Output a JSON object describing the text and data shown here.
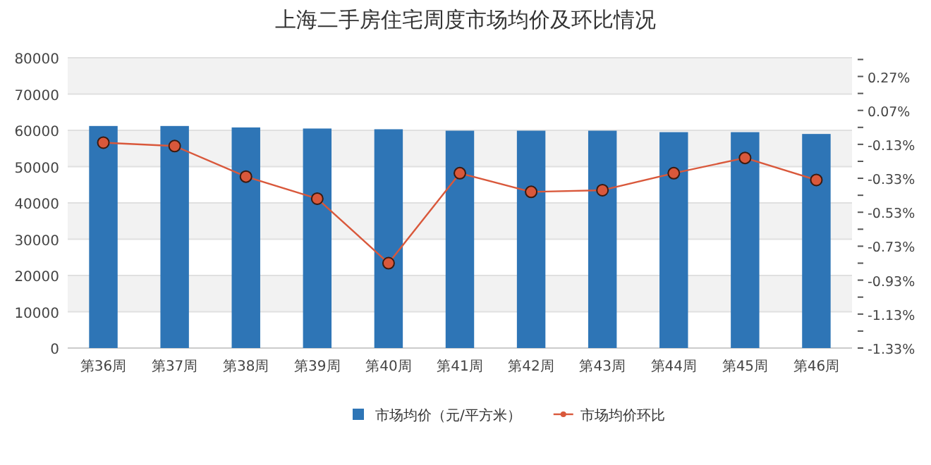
{
  "chart_data": {
    "type": "bar",
    "title": "上海二手房住宅周度市场均价及环比情况",
    "categories": [
      "第36周",
      "第37周",
      "第38周",
      "第39周",
      "第40周",
      "第41周",
      "第42周",
      "第43周",
      "第44周",
      "第45周",
      "第46周"
    ],
    "series": [
      {
        "name": "市场均价（元/平方米）",
        "color": "#2e75b6",
        "values": [
          61200,
          61200,
          60800,
          60500,
          60300,
          59900,
          59900,
          59900,
          59500,
          59500,
          59000
        ]
      },
      {
        "name": "市场均价环比",
        "type": "line",
        "axis": "y2",
        "color": "#d9583b",
        "marker": "circle",
        "values": [
          -0.12,
          -0.14,
          -0.32,
          -0.45,
          -0.83,
          -0.3,
          -0.41,
          -0.4,
          -0.3,
          -0.21,
          -0.34
        ]
      }
    ],
    "ylim": [
      0,
      80000
    ],
    "yticks": [
      0,
      10000,
      20000,
      30000,
      40000,
      50000,
      60000,
      70000,
      80000
    ],
    "y2lim": [
      -1.33,
      0.38
    ],
    "y2ticks": [
      {
        "value": -1.33,
        "label": "-1.33%"
      },
      {
        "value": -1.23,
        "label": null
      },
      {
        "value": -1.13,
        "label": "-1.13%"
      },
      {
        "value": -1.03,
        "label": null
      },
      {
        "value": -0.93,
        "label": "-0.93%"
      },
      {
        "value": -0.83,
        "label": null
      },
      {
        "value": -0.73,
        "label": "-0.73%"
      },
      {
        "value": -0.63,
        "label": null
      },
      {
        "value": -0.53,
        "label": "-0.53%"
      },
      {
        "value": -0.43,
        "label": null
      },
      {
        "value": -0.33,
        "label": "-0.33%"
      },
      {
        "value": -0.23,
        "label": null
      },
      {
        "value": -0.13,
        "label": "-0.13%"
      },
      {
        "value": -0.03,
        "label": null
      },
      {
        "value": 0.07,
        "label": "0.07%"
      },
      {
        "value": 0.17,
        "label": null
      },
      {
        "value": 0.27,
        "label": "0.27%"
      },
      {
        "value": 0.37,
        "label": null
      }
    ],
    "grid": "y",
    "legend": "bottom"
  }
}
